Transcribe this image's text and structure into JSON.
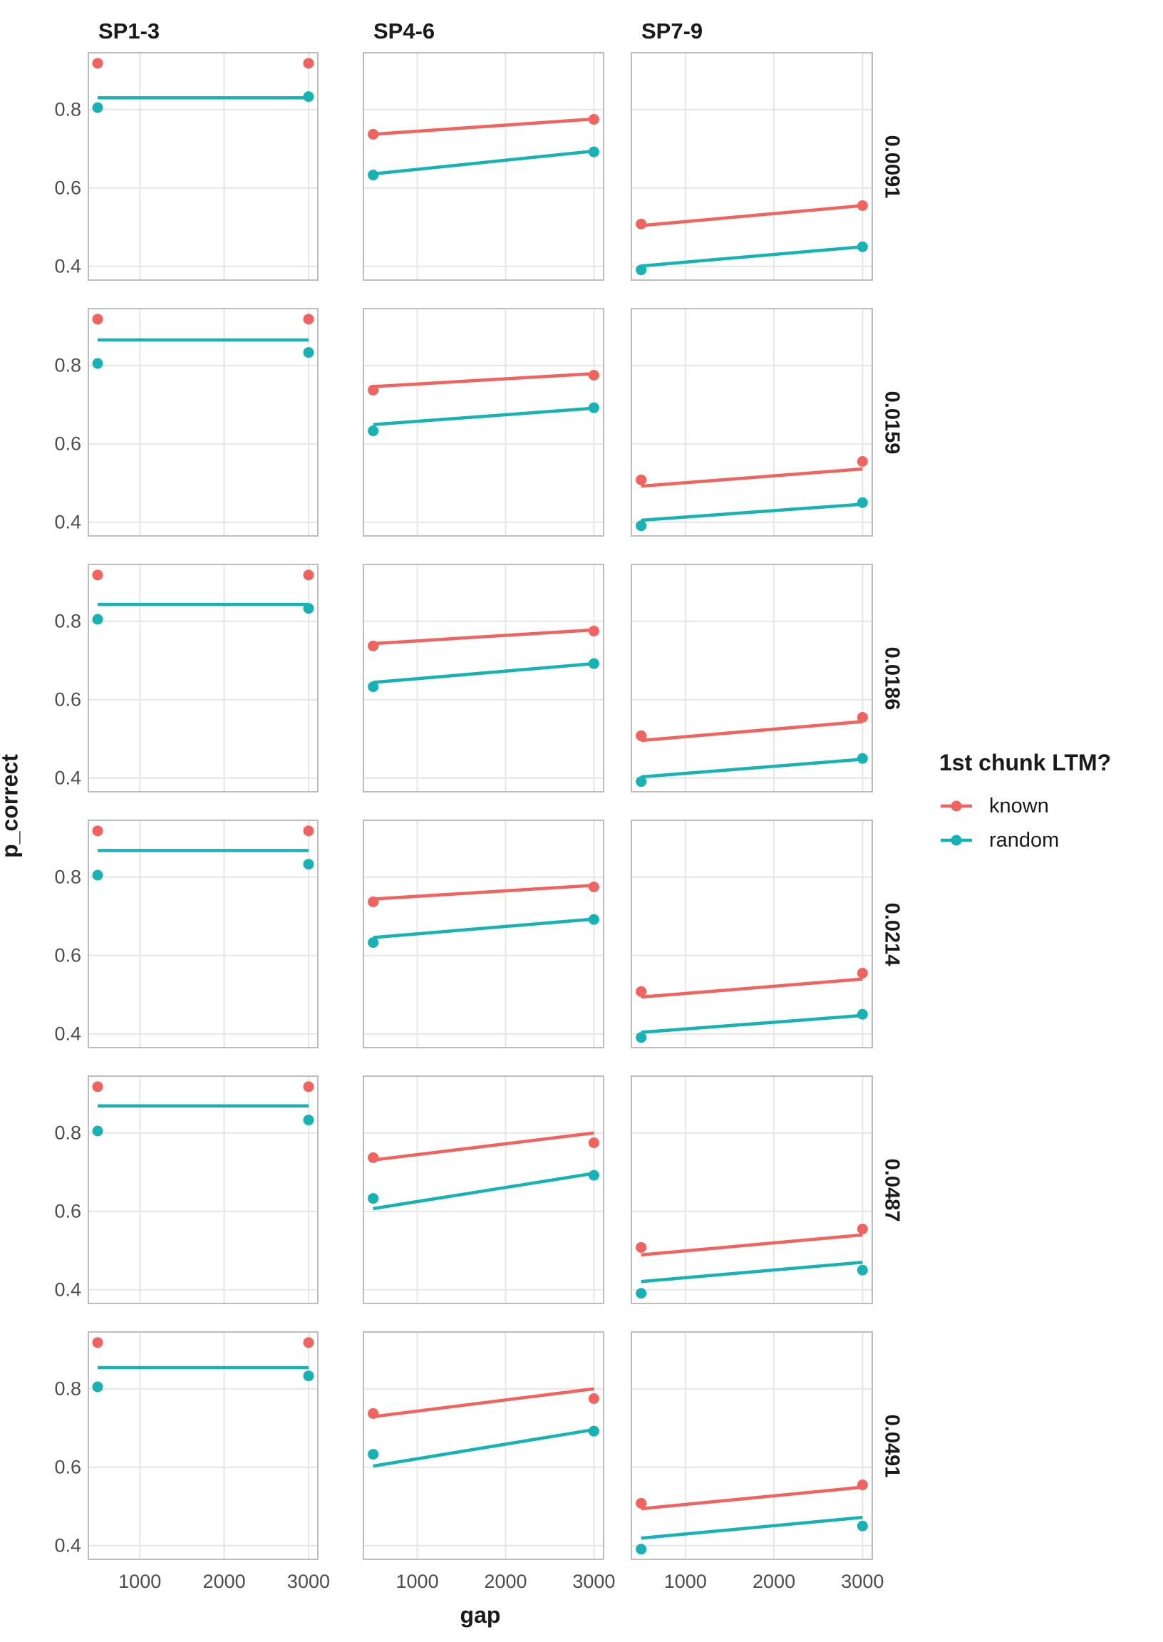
{
  "chart_data": {
    "type": "line",
    "title": "",
    "xlabel": "gap",
    "ylabel": "p_correct",
    "col_facets": [
      "SP1-3",
      "SP4-6",
      "SP7-9"
    ],
    "row_facets": [
      "0.0091",
      "0.0159",
      "0.0186",
      "0.0214",
      "0.0487",
      "0.0491"
    ],
    "x_ticks": [
      "1000",
      "2000",
      "3000"
    ],
    "x_tick_values": [
      1000,
      2000,
      3000
    ],
    "y_ticks": [
      "0.8",
      "0.6",
      "0.4"
    ],
    "y_tick_values": [
      0.8,
      0.6,
      0.4
    ],
    "xlim": [
      390,
      3110
    ],
    "ylim": [
      0.365,
      0.945
    ],
    "grid": true,
    "legend": {
      "title": "1st chunk LTM?",
      "position": "right",
      "entries": [
        {
          "label": "known",
          "color": "#F0635E"
        },
        {
          "label": "random",
          "color": "#16B3B4"
        }
      ]
    },
    "colors": {
      "background": "#FFFFFF",
      "grid": "#E6E6E6",
      "panel_border": "#BDBDBD",
      "tick_text": "#4D4D4D",
      "text": "#1A1A1A"
    },
    "points": {
      "SP1-3": {
        "known": [
          [
            500,
            0.918
          ],
          [
            3000,
            0.918
          ]
        ],
        "random": [
          [
            500,
            0.805
          ],
          [
            3000,
            0.833
          ]
        ]
      },
      "SP4-6": {
        "known": [
          [
            500,
            0.737
          ],
          [
            3000,
            0.775
          ]
        ],
        "random": [
          [
            500,
            0.633
          ],
          [
            3000,
            0.692
          ]
        ]
      },
      "SP7-9": {
        "known": [
          [
            500,
            0.508
          ],
          [
            3000,
            0.555
          ]
        ],
        "random": [
          [
            500,
            0.391
          ],
          [
            3000,
            0.45
          ]
        ]
      }
    },
    "fit_lines": [
      {
        "row": "0.0091",
        "panels": {
          "SP1-3": {
            "random": [
              [
                500,
                0.83
              ],
              [
                3000,
                0.83
              ]
            ]
          },
          "SP4-6": {
            "known": [
              [
                500,
                0.737
              ],
              [
                3000,
                0.776
              ]
            ],
            "random": [
              [
                500,
                0.636
              ],
              [
                3000,
                0.694
              ]
            ]
          },
          "SP7-9": {
            "known": [
              [
                500,
                0.504
              ],
              [
                3000,
                0.555
              ]
            ],
            "random": [
              [
                500,
                0.401
              ],
              [
                3000,
                0.45
              ]
            ]
          }
        }
      },
      {
        "row": "0.0159",
        "panels": {
          "SP1-3": {
            "random": [
              [
                500,
                0.865
              ],
              [
                3000,
                0.865
              ]
            ]
          },
          "SP4-6": {
            "known": [
              [
                500,
                0.746
              ],
              [
                3000,
                0.779
              ]
            ],
            "random": [
              [
                500,
                0.649
              ],
              [
                3000,
                0.691
              ]
            ]
          },
          "SP7-9": {
            "known": [
              [
                500,
                0.492
              ],
              [
                3000,
                0.536
              ]
            ],
            "random": [
              [
                500,
                0.405
              ],
              [
                3000,
                0.446
              ]
            ]
          }
        }
      },
      {
        "row": "0.0186",
        "panels": {
          "SP1-3": {
            "random": [
              [
                500,
                0.843
              ],
              [
                3000,
                0.843
              ]
            ]
          },
          "SP4-6": {
            "known": [
              [
                500,
                0.743
              ],
              [
                3000,
                0.778
              ]
            ],
            "random": [
              [
                500,
                0.644
              ],
              [
                3000,
                0.692
              ]
            ]
          },
          "SP7-9": {
            "known": [
              [
                500,
                0.496
              ],
              [
                3000,
                0.544
              ]
            ],
            "random": [
              [
                500,
                0.403
              ],
              [
                3000,
                0.448
              ]
            ]
          }
        }
      },
      {
        "row": "0.0214",
        "panels": {
          "SP1-3": {
            "random": [
              [
                500,
                0.868
              ],
              [
                3000,
                0.868
              ]
            ]
          },
          "SP4-6": {
            "known": [
              [
                500,
                0.744
              ],
              [
                3000,
                0.779
              ]
            ],
            "random": [
              [
                500,
                0.646
              ],
              [
                3000,
                0.693
              ]
            ]
          },
          "SP7-9": {
            "known": [
              [
                500,
                0.494
              ],
              [
                3000,
                0.54
              ]
            ],
            "random": [
              [
                500,
                0.404
              ],
              [
                3000,
                0.447
              ]
            ]
          }
        }
      },
      {
        "row": "0.0487",
        "panels": {
          "SP1-3": {
            "random": [
              [
                500,
                0.869
              ],
              [
                3000,
                0.869
              ]
            ]
          },
          "SP4-6": {
            "known": [
              [
                500,
                0.731
              ],
              [
                3000,
                0.8
              ]
            ],
            "random": [
              [
                500,
                0.607
              ],
              [
                3000,
                0.697
              ]
            ]
          },
          "SP7-9": {
            "known": [
              [
                500,
                0.489
              ],
              [
                3000,
                0.54
              ]
            ],
            "random": [
              [
                500,
                0.421
              ],
              [
                3000,
                0.47
              ]
            ]
          }
        }
      },
      {
        "row": "0.0491",
        "panels": {
          "SP1-3": {
            "random": [
              [
                500,
                0.854
              ],
              [
                3000,
                0.854
              ]
            ]
          },
          "SP4-6": {
            "known": [
              [
                500,
                0.729
              ],
              [
                3000,
                0.8
              ]
            ],
            "random": [
              [
                500,
                0.603
              ],
              [
                3000,
                0.696
              ]
            ]
          },
          "SP7-9": {
            "known": [
              [
                500,
                0.494
              ],
              [
                3000,
                0.549
              ]
            ],
            "random": [
              [
                500,
                0.419
              ],
              [
                3000,
                0.472
              ]
            ]
          }
        }
      }
    ]
  }
}
